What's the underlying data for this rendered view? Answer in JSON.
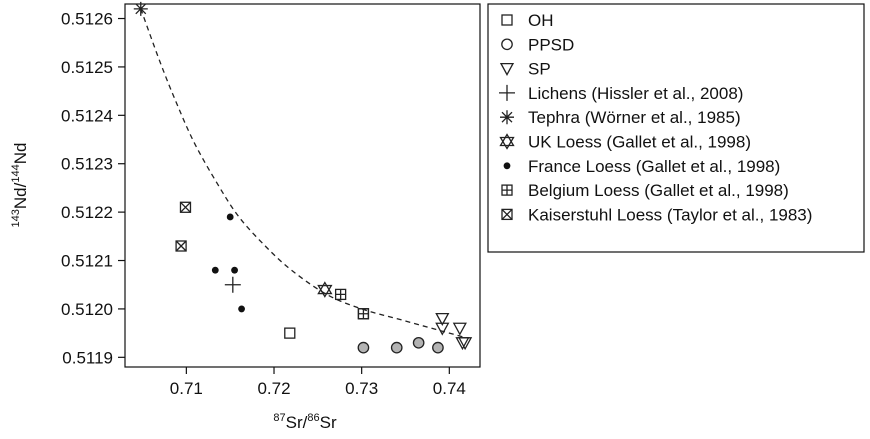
{
  "chart_data": {
    "type": "scatter",
    "xlabel": {
      "pre": "87",
      "mid": "Sr/",
      "sup2": "86",
      "post": "Sr"
    },
    "ylabel": {
      "pre": "143",
      "mid": "Nd/",
      "sup2": "144",
      "post": "Nd"
    },
    "xlim": [
      0.703,
      0.7435
    ],
    "ylim": [
      0.51188,
      0.51263
    ],
    "xticks": [
      {
        "v": 0.71,
        "label": "0.71"
      },
      {
        "v": 0.72,
        "label": "0.72"
      },
      {
        "v": 0.73,
        "label": "0.73"
      },
      {
        "v": 0.74,
        "label": "0.74"
      }
    ],
    "yticks": [
      {
        "v": 0.5119,
        "label": "0.5119"
      },
      {
        "v": 0.512,
        "label": "0.5120"
      },
      {
        "v": 0.5121,
        "label": "0.5121"
      },
      {
        "v": 0.5122,
        "label": "0.5122"
      },
      {
        "v": 0.5123,
        "label": "0.5123"
      },
      {
        "v": 0.5124,
        "label": "0.5124"
      },
      {
        "v": 0.5125,
        "label": "0.5125"
      },
      {
        "v": 0.5126,
        "label": "0.5126"
      }
    ],
    "grid": false,
    "legend_position": "right",
    "series": [
      {
        "name": "OH",
        "marker": "square",
        "points": [
          [
            0.7218,
            0.51195
          ],
          [
            0.7302,
            0.51199
          ]
        ]
      },
      {
        "name": "PPSD",
        "marker": "circle",
        "points": [
          [
            0.7302,
            0.51192
          ],
          [
            0.734,
            0.51192
          ],
          [
            0.7365,
            0.51193
          ],
          [
            0.7387,
            0.51192
          ]
        ]
      },
      {
        "name": "SP",
        "marker": "triangle-down",
        "points": [
          [
            0.7392,
            0.51198
          ],
          [
            0.7392,
            0.51196
          ],
          [
            0.7412,
            0.51196
          ],
          [
            0.7418,
            0.51193
          ],
          [
            0.7415,
            0.51193
          ]
        ]
      },
      {
        "name": "Lichens (Hissler et al., 2008)",
        "marker": "plus",
        "points": [
          [
            0.7153,
            0.51205
          ]
        ]
      },
      {
        "name": "Tephra (Wörner et al., 1985)",
        "marker": "asterisk",
        "points": [
          [
            0.7048,
            0.51262
          ]
        ]
      },
      {
        "name": "UK Loess (Gallet et al., 1998)",
        "marker": "star-of-david",
        "points": [
          [
            0.7258,
            0.51204
          ]
        ]
      },
      {
        "name": "France Loess (Gallet et al., 1998)",
        "marker": "dot",
        "points": [
          [
            0.715,
            0.51219
          ],
          [
            0.7133,
            0.51208
          ],
          [
            0.7155,
            0.51208
          ],
          [
            0.7163,
            0.512
          ]
        ]
      },
      {
        "name": "Belgium Loess (Gallet et al., 1998)",
        "marker": "square-plus",
        "points": [
          [
            0.7276,
            0.51203
          ],
          [
            0.7302,
            0.51199
          ]
        ]
      },
      {
        "name": "Kaiserstuhl Loess (Taylor et al., 1983)",
        "marker": "square-x",
        "points": [
          [
            0.7099,
            0.51221
          ],
          [
            0.7094,
            0.51213
          ]
        ]
      }
    ],
    "curve": {
      "style": "dashed",
      "points": [
        [
          0.7048,
          0.51262
        ],
        [
          0.707,
          0.51251
        ],
        [
          0.709,
          0.51242
        ],
        [
          0.711,
          0.51234
        ],
        [
          0.7135,
          0.51226
        ],
        [
          0.716,
          0.51219
        ],
        [
          0.719,
          0.51213
        ],
        [
          0.722,
          0.51208
        ],
        [
          0.726,
          0.51203
        ],
        [
          0.73,
          0.512
        ],
        [
          0.734,
          0.51198
        ],
        [
          0.738,
          0.51196
        ],
        [
          0.742,
          0.51194
        ]
      ]
    },
    "colors": {
      "marker_stroke": "#222222",
      "ppsd_fill": "#b3b3b3",
      "dot_fill": "#111111"
    }
  }
}
